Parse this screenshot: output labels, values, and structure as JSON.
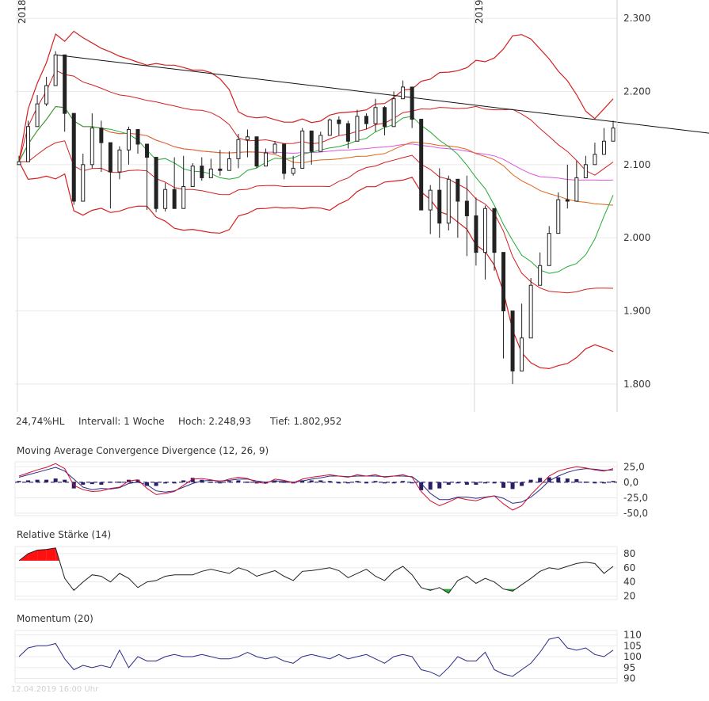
{
  "info": {
    "range_pct": "24,74%HL",
    "interval": "Intervall: 1 Woche",
    "high": "Hoch:  2.248,93",
    "low": "Tief: 1.802,952"
  },
  "footer": "12.04.2019 16:00 Uhr",
  "colors": {
    "candle": "#222222",
    "bollinger": "#d42020",
    "sma_short": "#22aa33",
    "sma_mid": "#e0661a",
    "sma_long": "#dd55dd",
    "trendline": "#111111",
    "macd": "#cc1133",
    "signal": "#2a2a88",
    "histogram": "#2a1f66",
    "rsi_line": "#222222",
    "rsi_overbought": "#ff1111",
    "rsi_oversold": "#22aa33",
    "momentum": "#2a2a88",
    "grid": "#eaeaea"
  },
  "chart_data": [
    {
      "type": "candlestick",
      "title": "",
      "x_tick_labels": [
        "2018",
        "2019"
      ],
      "x_tick_weeks": [
        0,
        50
      ],
      "y_ticks": [
        1800,
        1900,
        2000,
        2100,
        2200,
        2300
      ],
      "y_tick_labels": [
        "1.800",
        "1.900",
        "2.000",
        "2.100",
        "2.200",
        "2.300"
      ],
      "ylim": [
        1762,
        2325
      ],
      "weeks": 66,
      "close": [
        2104,
        2152,
        2183,
        2208,
        2250,
        2170,
        2050,
        2100,
        2150,
        2130,
        2090,
        2120,
        2148,
        2128,
        2110,
        2040,
        2066,
        2040,
        2070,
        2098,
        2082,
        2094,
        2092,
        2108,
        2134,
        2138,
        2098,
        2116,
        2128,
        2088,
        2095,
        2146,
        2118,
        2140,
        2161,
        2156,
        2132,
        2166,
        2156,
        2178,
        2152,
        2190,
        2206,
        2162,
        2038,
        2065,
        2020,
        2080,
        2050,
        2030,
        1980,
        2040,
        1980,
        1900,
        1818,
        1863,
        1935,
        1962,
        2006,
        2052,
        2050,
        2082,
        2100,
        2114,
        2132,
        2150
      ],
      "high": [
        2112,
        2160,
        2195,
        2220,
        2255,
        2180,
        2150,
        2115,
        2170,
        2160,
        2130,
        2125,
        2152,
        2145,
        2120,
        2080,
        2075,
        2110,
        2112,
        2102,
        2110,
        2108,
        2120,
        2118,
        2142,
        2148,
        2136,
        2122,
        2132,
        2102,
        2112,
        2150,
        2142,
        2145,
        2163,
        2166,
        2160,
        2175,
        2170,
        2190,
        2180,
        2200,
        2215,
        2188,
        2118,
        2072,
        2095,
        2085,
        2072,
        2085,
        2055,
        2044,
        1985,
        1915,
        1870,
        1910,
        1945,
        1980,
        2016,
        2062,
        2100,
        2105,
        2112,
        2130,
        2150,
        2160
      ],
      "low": [
        2100,
        2125,
        2160,
        2180,
        2225,
        2145,
        2045,
        2070,
        2095,
        2090,
        2040,
        2080,
        2100,
        2115,
        2038,
        2035,
        2036,
        2040,
        2060,
        2080,
        2078,
        2082,
        2085,
        2092,
        2095,
        2110,
        2095,
        2108,
        2125,
        2080,
        2085,
        2110,
        2100,
        2135,
        2145,
        2140,
        2122,
        2140,
        2148,
        2145,
        2140,
        2175,
        2190,
        2150,
        2045,
        2005,
        2000,
        2010,
        2000,
        1975,
        1962,
        1943,
        1955,
        1835,
        1800,
        1850,
        1920,
        1955,
        1985,
        2035,
        2040,
        2050,
        2085,
        2110,
        2128,
        2140
      ]
    },
    {
      "type": "line",
      "title": "Moving Average Convergence Divergence (12, 26, 9)",
      "y_ticks": [
        25,
        0,
        -25,
        -50
      ],
      "y_tick_labels": [
        "25,0",
        "0,0",
        "-25,0",
        "-50,0"
      ],
      "ylim": [
        -54,
        33
      ],
      "series": [
        {
          "name": "MACD",
          "values": [
            10,
            15,
            20,
            24,
            30,
            22,
            -5,
            -12,
            -15,
            -14,
            -10,
            -8,
            2,
            4,
            -10,
            -20,
            -18,
            -15,
            -5,
            5,
            6,
            4,
            1,
            5,
            8,
            6,
            0,
            -2,
            5,
            3,
            -1,
            5,
            8,
            10,
            12,
            10,
            8,
            12,
            10,
            12,
            8,
            10,
            12,
            8,
            -15,
            -30,
            -38,
            -32,
            -25,
            -28,
            -30,
            -25,
            -22,
            -35,
            -45,
            -38,
            -20,
            -5,
            10,
            18,
            22,
            25,
            23,
            20,
            18,
            22
          ]
        },
        {
          "name": "Signal",
          "values": [
            8,
            12,
            16,
            20,
            24,
            18,
            5,
            -8,
            -12,
            -10,
            -11,
            -9,
            -2,
            0,
            -4,
            -14,
            -16,
            -14,
            -8,
            -2,
            2,
            3,
            2,
            3,
            5,
            5,
            2,
            0,
            2,
            2,
            0,
            2,
            5,
            7,
            10,
            10,
            9,
            10,
            10,
            10,
            9,
            10,
            10,
            9,
            -2,
            -18,
            -28,
            -28,
            -24,
            -24,
            -26,
            -24,
            -22,
            -26,
            -34,
            -32,
            -24,
            -12,
            2,
            10,
            16,
            20,
            22,
            21,
            19,
            20
          ]
        },
        {
          "name": "Histogram",
          "values": [
            2,
            3,
            4,
            4,
            6,
            4,
            -10,
            -4,
            -3,
            -4,
            1,
            1,
            4,
            4,
            -6,
            -6,
            -2,
            -1,
            3,
            7,
            4,
            1,
            -1,
            2,
            3,
            1,
            -2,
            -2,
            3,
            1,
            -1,
            3,
            3,
            3,
            2,
            0,
            -1,
            2,
            0,
            2,
            -1,
            0,
            2,
            -1,
            -13,
            -12,
            -10,
            -4,
            -1,
            -4,
            -4,
            -1,
            0,
            -9,
            -11,
            -6,
            4,
            7,
            8,
            8,
            6,
            5,
            1,
            -1,
            -1,
            2
          ]
        }
      ]
    },
    {
      "type": "line",
      "title": "Relative Stärke (14)",
      "y_ticks": [
        80,
        60,
        40,
        20
      ],
      "y_tick_labels": [
        "80",
        "60",
        "40",
        "20"
      ],
      "ylim": [
        15,
        90
      ],
      "overbought": 70,
      "oversold": 30,
      "values": [
        70,
        80,
        85,
        86,
        88,
        45,
        28,
        40,
        50,
        48,
        40,
        52,
        45,
        32,
        40,
        42,
        48,
        50,
        50,
        50,
        55,
        58,
        55,
        52,
        60,
        56,
        48,
        52,
        56,
        48,
        42,
        55,
        56,
        58,
        60,
        56,
        46,
        52,
        58,
        48,
        42,
        55,
        62,
        50,
        32,
        28,
        32,
        24,
        42,
        48,
        38,
        45,
        40,
        30,
        27,
        36,
        45,
        55,
        60,
        58,
        62,
        66,
        68,
        66,
        52,
        62
      ]
    },
    {
      "type": "line",
      "title": "Momentum (20)",
      "y_ticks": [
        110,
        105,
        100,
        95,
        90
      ],
      "y_tick_labels": [
        "110",
        "105",
        "100",
        "95",
        "90"
      ],
      "ylim": [
        88,
        112
      ],
      "values": [
        100,
        104,
        105,
        105,
        106,
        99,
        94,
        96,
        95,
        96,
        95,
        103,
        95,
        100,
        98,
        98,
        100,
        101,
        100,
        100,
        101,
        100,
        99,
        99,
        100,
        102,
        100,
        99,
        100,
        98,
        97,
        100,
        101,
        100,
        99,
        101,
        99,
        100,
        101,
        99,
        97,
        100,
        101,
        100,
        94,
        93,
        91,
        95,
        100,
        98,
        98,
        102,
        94,
        92,
        91,
        94,
        97,
        102,
        108,
        109,
        104,
        103,
        104,
        101,
        100,
        103
      ]
    }
  ]
}
